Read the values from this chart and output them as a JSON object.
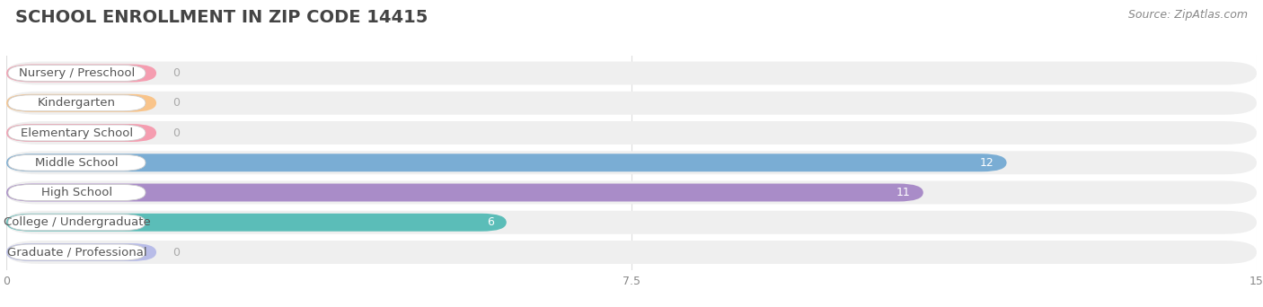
{
  "title": "SCHOOL ENROLLMENT IN ZIP CODE 14415",
  "source": "Source: ZipAtlas.com",
  "categories": [
    "Nursery / Preschool",
    "Kindergarten",
    "Elementary School",
    "Middle School",
    "High School",
    "College / Undergraduate",
    "Graduate / Professional"
  ],
  "values": [
    0,
    0,
    0,
    12,
    11,
    6,
    0
  ],
  "bar_colors": [
    "#f59db0",
    "#f9c48a",
    "#f59db0",
    "#7aadd4",
    "#a98cc8",
    "#5bbdb8",
    "#b8bce8"
  ],
  "bar_bg_color": "#efefef",
  "label_bg_color": "#ffffff",
  "label_text_color": "#555555",
  "value_text_color_inside": "#ffffff",
  "value_text_color_outside": "#aaaaaa",
  "zero_bar_width": 1.8,
  "xlim": [
    0,
    15
  ],
  "xticks": [
    0,
    7.5,
    15
  ],
  "title_fontsize": 14,
  "source_fontsize": 9,
  "label_fontsize": 9.5,
  "value_fontsize": 9,
  "background_color": "#ffffff",
  "grid_color": "#dddddd"
}
